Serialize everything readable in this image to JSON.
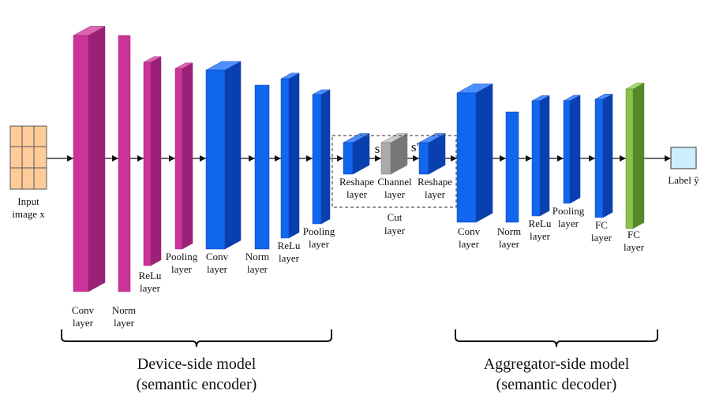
{
  "colors": {
    "conv_magenta": {
      "front": "#cc3399",
      "side": "#992277",
      "top": "#dd66b3"
    },
    "blue": {
      "front": "#1166ee",
      "side": "#0a3fb0",
      "top": "#4d8fff"
    },
    "gray": {
      "front": "#aaaaaa",
      "side": "#777777",
      "top": "#cccccc"
    },
    "green": {
      "front": "#8bc34a",
      "side": "#55882a",
      "top": "#aad97a"
    },
    "input_grid": "#ffcc99",
    "output_box": "#cceeff"
  },
  "input": {
    "line1": "Input",
    "line2": "image x"
  },
  "output": {
    "label": "Label ŷ"
  },
  "encoder_layers": [
    {
      "line1": "Conv",
      "line2": "layer"
    },
    {
      "line1": "Norm",
      "line2": "layer"
    },
    {
      "line1": "ReLu",
      "line2": "layer"
    },
    {
      "line1": "Pooling",
      "line2": "layer"
    },
    {
      "line1": "Conv",
      "line2": "layer"
    },
    {
      "line1": "Norm",
      "line2": "layer"
    },
    {
      "line1": "ReLu",
      "line2": "layer"
    },
    {
      "line1": "Pooling",
      "line2": "layer"
    }
  ],
  "cut": {
    "layers": [
      {
        "line1": "Reshape",
        "line2": "layer"
      },
      {
        "line1": "Channel",
        "line2": "layer"
      },
      {
        "line1": "Reshape",
        "line2": "layer"
      }
    ],
    "symbol_s": "s",
    "symbol_s_prime": "s′",
    "title_line1": "Cut",
    "title_line2": "layer"
  },
  "decoder_layers": [
    {
      "line1": "Conv",
      "line2": "layer"
    },
    {
      "line1": "Norm",
      "line2": "layer"
    },
    {
      "line1": "ReLu",
      "line2": "layer"
    },
    {
      "line1": "Pooling",
      "line2": "layer"
    },
    {
      "line1": "FC",
      "line2": "layer"
    },
    {
      "line1": "FC",
      "line2": "layer"
    }
  ],
  "groups": {
    "device": {
      "line1": "Device-side model",
      "line2": "(semantic encoder)"
    },
    "aggregator": {
      "line1": "Aggregator-side model",
      "line2": "(semantic decoder)"
    }
  }
}
